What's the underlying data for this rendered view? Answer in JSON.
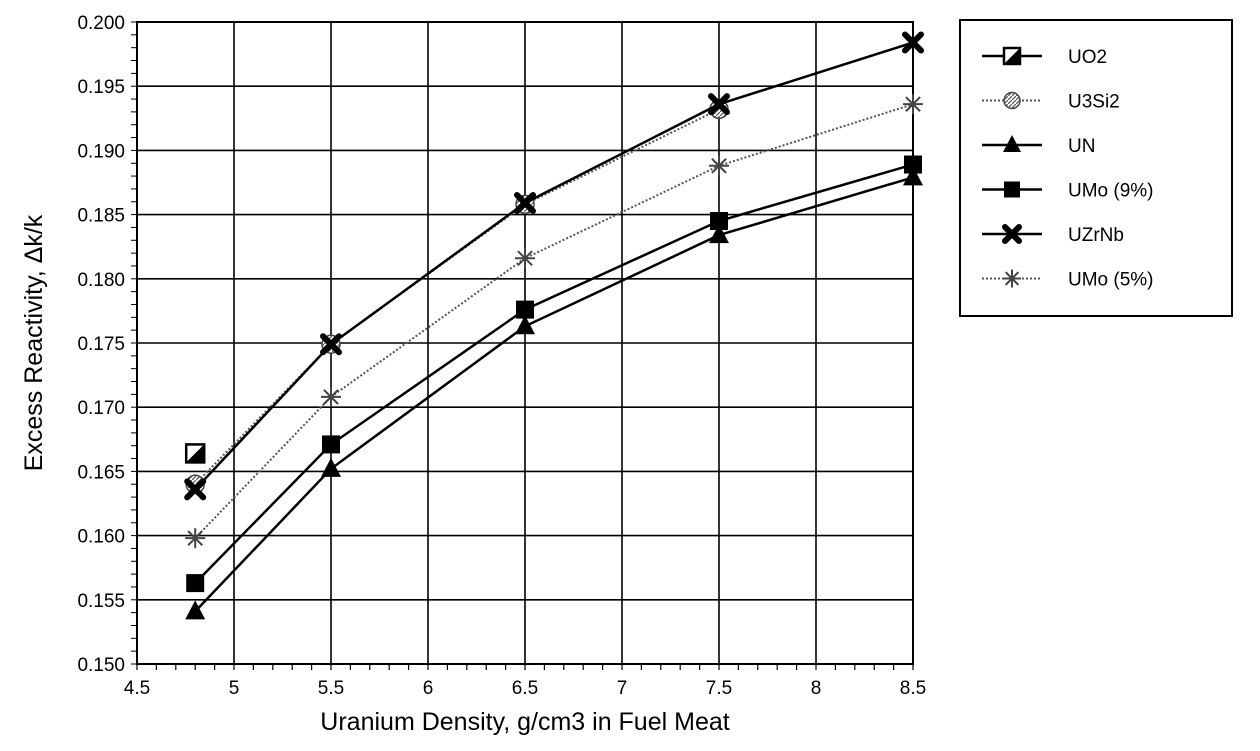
{
  "chart_data": {
    "type": "line",
    "title": "",
    "xlabel": "Uranium Density, g/cm3 in Fuel Meat",
    "ylabel": "Excess Reactivity, Δk/k",
    "xlim": [
      4.5,
      8.5
    ],
    "ylim": [
      0.15,
      0.2
    ],
    "x_ticks": [
      "4.5",
      "5",
      "5.5",
      "6",
      "6.5",
      "7",
      "7.5",
      "8",
      "8.5"
    ],
    "y_ticks": [
      "0.150",
      "0.155",
      "0.160",
      "0.165",
      "0.170",
      "0.175",
      "0.180",
      "0.185",
      "0.190",
      "0.195",
      "0.200"
    ],
    "grid": true,
    "legend_position": "right",
    "series": [
      {
        "name": "UO2",
        "marker": "square-half",
        "line": "solid",
        "color": "#000000",
        "points": [
          [
            4.8,
            0.1664
          ]
        ]
      },
      {
        "name": "U3Si2",
        "marker": "circle-hatched",
        "line": "dotted",
        "color": "#555555",
        "points": [
          [
            4.8,
            0.164
          ],
          [
            5.5,
            0.1749
          ],
          [
            6.5,
            0.1858
          ],
          [
            7.5,
            0.1932
          ]
        ]
      },
      {
        "name": "UN",
        "marker": "triangle",
        "line": "solid",
        "color": "#000000",
        "points": [
          [
            4.8,
            0.1541
          ],
          [
            5.5,
            0.1652
          ],
          [
            6.5,
            0.1763
          ],
          [
            7.5,
            0.1834
          ],
          [
            8.5,
            0.1879
          ]
        ]
      },
      {
        "name": "UMo (9%)",
        "marker": "square",
        "line": "solid",
        "color": "#000000",
        "points": [
          [
            4.8,
            0.1563
          ],
          [
            5.5,
            0.1671
          ],
          [
            6.5,
            0.1776
          ],
          [
            7.5,
            0.1845
          ],
          [
            8.5,
            0.1889
          ]
        ]
      },
      {
        "name": "UZrNb",
        "marker": "x-filled",
        "line": "solid",
        "color": "#000000",
        "points": [
          [
            4.8,
            0.1636
          ],
          [
            5.5,
            0.1749
          ],
          [
            6.5,
            0.1859
          ],
          [
            7.5,
            0.1936
          ],
          [
            8.5,
            0.1984
          ]
        ]
      },
      {
        "name": "UMo (5%)",
        "marker": "star",
        "line": "dotted",
        "color": "#555555",
        "points": [
          [
            4.8,
            0.1598
          ],
          [
            5.5,
            0.1708
          ],
          [
            6.5,
            0.1816
          ],
          [
            7.5,
            0.1888
          ],
          [
            8.5,
            0.1936
          ]
        ]
      }
    ]
  }
}
